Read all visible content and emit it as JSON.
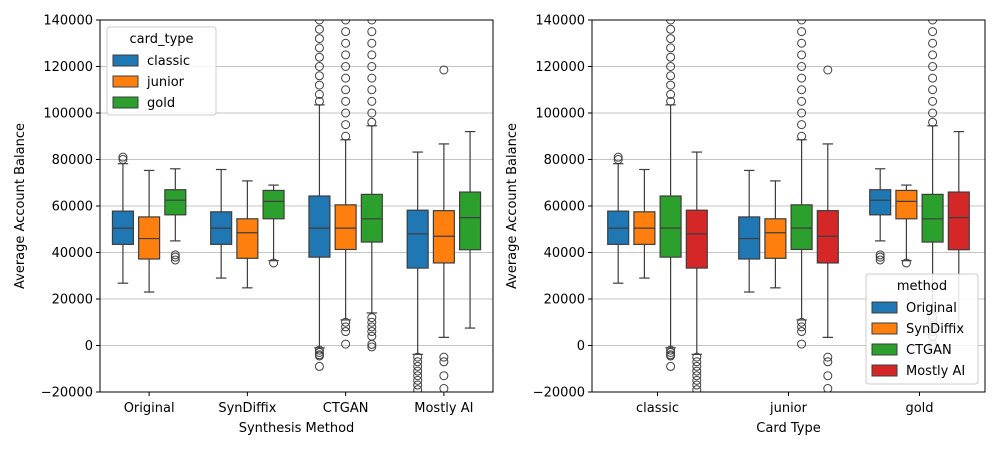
{
  "colors": {
    "blue": "#1f77b4",
    "orange": "#ff7f0e",
    "green": "#2ca02c",
    "red": "#d62728",
    "grid": "#b0b0b0",
    "whisker": "#3d3d3d"
  },
  "chart_data": [
    {
      "type": "box",
      "xlabel": "Synthesis Method",
      "ylabel": "Average Account Balance",
      "ylim": [
        -20000,
        140000
      ],
      "yticks": [
        -20000,
        0,
        20000,
        40000,
        60000,
        80000,
        100000,
        120000,
        140000
      ],
      "grid": "y",
      "categories": [
        "Original",
        "SynDiffix",
        "CTGAN",
        "Mostly AI"
      ],
      "legend": {
        "title": "card_type",
        "position": "top-left",
        "entries": [
          "classic",
          "junior",
          "gold"
        ]
      },
      "series": [
        {
          "name": "classic",
          "color_key": "blue",
          "boxes": [
            {
              "q1": 43500,
              "median": 50500,
              "q3": 57800,
              "whislo": 26800,
              "whishi": 78200,
              "outliers": [
                80000,
                81000
              ]
            },
            {
              "q1": 43500,
              "median": 50500,
              "q3": 57500,
              "whislo": 29000,
              "whishi": 75700,
              "outliers": []
            },
            {
              "q1": 38000,
              "median": 50500,
              "q3": 64300,
              "whislo": -1000,
              "whishi": 103500,
              "outliers": [
                -2000,
                -3000,
                -4000,
                -4500,
                -9000,
                105000,
                108000,
                112000,
                116000,
                120000,
                124000,
                128000,
                132000,
                136000,
                140000
              ]
            },
            {
              "q1": 33300,
              "median": 48000,
              "q3": 58200,
              "whislo": -3800,
              "whishi": 83200,
              "outliers": [
                -5000,
                -7000,
                -9000,
                -11000,
                -13000,
                -15000,
                -17000,
                -19000
              ]
            }
          ]
        },
        {
          "name": "junior",
          "color_key": "orange",
          "boxes": [
            {
              "q1": 37200,
              "median": 46000,
              "q3": 55300,
              "whislo": 23000,
              "whishi": 75300,
              "outliers": []
            },
            {
              "q1": 37500,
              "median": 48500,
              "q3": 54500,
              "whislo": 24800,
              "whishi": 70800,
              "outliers": []
            },
            {
              "q1": 41300,
              "median": 50500,
              "q3": 60500,
              "whislo": 11000,
              "whishi": 88500,
              "outliers": [
                10000,
                8000,
                6000,
                600,
                90000,
                95000,
                100000,
                105000,
                110000,
                115000,
                120000,
                125000,
                130000,
                135000,
                140000
              ]
            },
            {
              "q1": 35500,
              "median": 47000,
              "q3": 58000,
              "whislo": 3500,
              "whishi": 86700,
              "outliers": [
                -5000,
                -7000,
                -13000,
                -18500,
                118500
              ]
            }
          ]
        },
        {
          "name": "gold",
          "color_key": "green",
          "boxes": [
            {
              "q1": 56200,
              "median": 62500,
              "q3": 67000,
              "whislo": 45000,
              "whishi": 76000,
              "outliers": [
                39000,
                38000,
                36800
              ]
            },
            {
              "q1": 54500,
              "median": 62000,
              "q3": 66700,
              "whislo": 36500,
              "whishi": 69000,
              "outliers": [
                35500
              ]
            },
            {
              "q1": 44500,
              "median": 54500,
              "q3": 65000,
              "whislo": 14000,
              "whishi": 94500,
              "outliers": [
                12000,
                10000,
                8000,
                6000,
                4000,
                500,
                -600,
                96000,
                100000,
                105000,
                110000,
                115000,
                120000,
                125000,
                130000,
                135000,
                140000
              ]
            },
            {
              "q1": 41200,
              "median": 55000,
              "q3": 66000,
              "whislo": 7500,
              "whishi": 92000,
              "outliers": []
            }
          ]
        }
      ]
    },
    {
      "type": "box",
      "xlabel": "Card Type",
      "ylabel": "Average Account Balance",
      "ylim": [
        -20000,
        140000
      ],
      "yticks": [
        -20000,
        0,
        20000,
        40000,
        60000,
        80000,
        100000,
        120000,
        140000
      ],
      "grid": "y",
      "categories": [
        "classic",
        "junior",
        "gold"
      ],
      "legend": {
        "title": "method",
        "position": "bottom-right",
        "entries": [
          "Original",
          "SynDiffix",
          "CTGAN",
          "Mostly AI"
        ]
      },
      "series": [
        {
          "name": "Original",
          "color_key": "blue",
          "boxes": [
            {
              "q1": 43500,
              "median": 50500,
              "q3": 57800,
              "whislo": 26800,
              "whishi": 78200,
              "outliers": [
                80000,
                81000
              ]
            },
            {
              "q1": 37200,
              "median": 46000,
              "q3": 55300,
              "whislo": 23000,
              "whishi": 75300,
              "outliers": []
            },
            {
              "q1": 56200,
              "median": 62500,
              "q3": 67000,
              "whislo": 45000,
              "whishi": 76000,
              "outliers": [
                39000,
                38000,
                36800
              ]
            }
          ]
        },
        {
          "name": "SynDiffix",
          "color_key": "orange",
          "boxes": [
            {
              "q1": 43500,
              "median": 50500,
              "q3": 57500,
              "whislo": 29000,
              "whishi": 75700,
              "outliers": []
            },
            {
              "q1": 37500,
              "median": 48500,
              "q3": 54500,
              "whislo": 24800,
              "whishi": 70800,
              "outliers": []
            },
            {
              "q1": 54500,
              "median": 62000,
              "q3": 66700,
              "whislo": 36500,
              "whishi": 69000,
              "outliers": [
                35500
              ]
            }
          ]
        },
        {
          "name": "CTGAN",
          "color_key": "green",
          "boxes": [
            {
              "q1": 38000,
              "median": 50500,
              "q3": 64300,
              "whislo": -1000,
              "whishi": 103500,
              "outliers": [
                -2000,
                -3000,
                -4000,
                -4500,
                -9000,
                105000,
                108000,
                112000,
                116000,
                120000,
                124000,
                128000,
                132000,
                136000,
                140000
              ]
            },
            {
              "q1": 41300,
              "median": 50500,
              "q3": 60500,
              "whislo": 11000,
              "whishi": 88500,
              "outliers": [
                10000,
                8000,
                6000,
                600,
                90000,
                95000,
                100000,
                105000,
                110000,
                115000,
                120000,
                125000,
                130000,
                135000,
                140000
              ]
            },
            {
              "q1": 44500,
              "median": 54500,
              "q3": 65000,
              "whislo": 14000,
              "whishi": 94500,
              "outliers": [
                12000,
                10000,
                8000,
                6000,
                4000,
                500,
                -600,
                96000,
                100000,
                105000,
                110000,
                115000,
                120000,
                125000,
                130000,
                135000,
                140000
              ]
            }
          ]
        },
        {
          "name": "Mostly AI",
          "color_key": "red",
          "boxes": [
            {
              "q1": 33300,
              "median": 48000,
              "q3": 58200,
              "whislo": -3800,
              "whishi": 83200,
              "outliers": [
                -5000,
                -7000,
                -9000,
                -11000,
                -13000,
                -15000,
                -17000,
                -19000
              ]
            },
            {
              "q1": 35500,
              "median": 47000,
              "q3": 58000,
              "whislo": 3500,
              "whishi": 86700,
              "outliers": [
                -5000,
                -7000,
                -13000,
                -18500,
                118500
              ]
            },
            {
              "q1": 41200,
              "median": 55000,
              "q3": 66000,
              "whislo": 7500,
              "whishi": 92000,
              "outliers": []
            }
          ]
        }
      ]
    }
  ]
}
